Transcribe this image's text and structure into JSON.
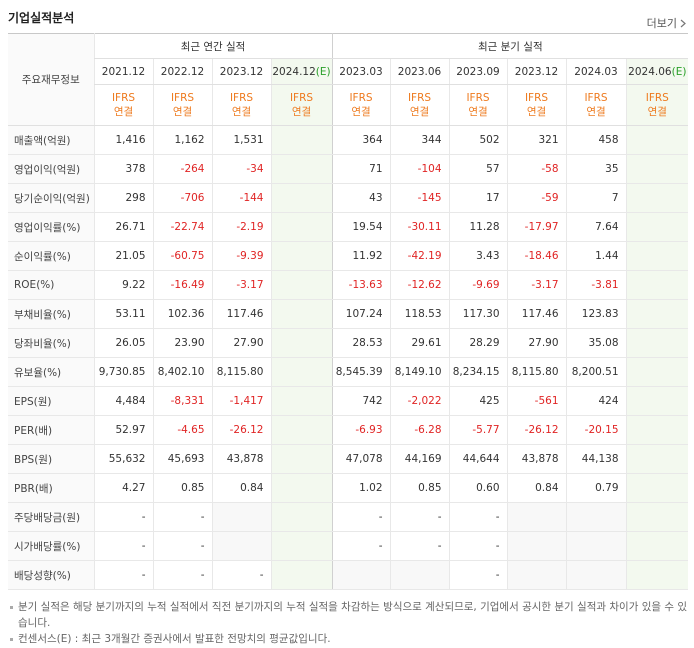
{
  "header": {
    "title": "기업실적분석",
    "more": "더보기"
  },
  "table": {
    "corner": "주요재무정보",
    "groups": [
      "최근 연간 실적",
      "최근 분기 실적"
    ],
    "periods": [
      {
        "label": "2021.12"
      },
      {
        "label": "2022.12"
      },
      {
        "label": "2023.12"
      },
      {
        "label": "2024.12",
        "mark": "(E)"
      },
      {
        "label": "2023.03"
      },
      {
        "label": "2023.06"
      },
      {
        "label": "2023.09"
      },
      {
        "label": "2023.12"
      },
      {
        "label": "2024.03"
      },
      {
        "label": "2024.06",
        "mark": "(E)"
      }
    ],
    "accounting": [
      {
        "standard": "IFRS",
        "basis": "연결"
      },
      {
        "standard": "IFRS",
        "basis": "연결"
      },
      {
        "standard": "IFRS",
        "basis": "연결"
      },
      {
        "standard": "IFRS",
        "basis": "연결"
      },
      {
        "standard": "IFRS",
        "basis": "연결"
      },
      {
        "standard": "IFRS",
        "basis": "연결"
      },
      {
        "standard": "IFRS",
        "basis": "연결"
      },
      {
        "standard": "IFRS",
        "basis": "연결"
      },
      {
        "standard": "IFRS",
        "basis": "연결"
      },
      {
        "standard": "IFRS",
        "basis": "연결"
      }
    ],
    "rows": [
      {
        "label": "매출액(억원)",
        "cells": [
          "1,416",
          "1,162",
          "1,531",
          null,
          "364",
          "344",
          "502",
          "321",
          "458",
          null
        ]
      },
      {
        "label": "영업이익(억원)",
        "cells": [
          "378",
          "-264",
          "-34",
          null,
          "71",
          "-104",
          "57",
          "-58",
          "35",
          null
        ]
      },
      {
        "label": "당기순이익(억원)",
        "cells": [
          "298",
          "-706",
          "-144",
          null,
          "43",
          "-145",
          "17",
          "-59",
          "7",
          null
        ]
      },
      {
        "label": "영업이익률(%)",
        "cells": [
          "26.71",
          "-22.74",
          "-2.19",
          null,
          "19.54",
          "-30.11",
          "11.28",
          "-17.97",
          "7.64",
          null
        ]
      },
      {
        "label": "순이익률(%)",
        "cells": [
          "21.05",
          "-60.75",
          "-9.39",
          null,
          "11.92",
          "-42.19",
          "3.43",
          "-18.46",
          "1.44",
          null
        ]
      },
      {
        "label": "ROE(%)",
        "cells": [
          "9.22",
          "-16.49",
          "-3.17",
          null,
          "-13.63",
          "-12.62",
          "-9.69",
          "-3.17",
          "-3.81",
          null
        ]
      },
      {
        "label": "부채비율(%)",
        "cells": [
          "53.11",
          "102.36",
          "117.46",
          null,
          "107.24",
          "118.53",
          "117.30",
          "117.46",
          "123.83",
          null
        ]
      },
      {
        "label": "당좌비율(%)",
        "cells": [
          "26.05",
          "23.90",
          "27.90",
          null,
          "28.53",
          "29.61",
          "28.29",
          "27.90",
          "35.08",
          null
        ]
      },
      {
        "label": "유보율(%)",
        "cells": [
          "9,730.85",
          "8,402.10",
          "8,115.80",
          null,
          "8,545.39",
          "8,149.10",
          "8,234.15",
          "8,115.80",
          "8,200.51",
          null
        ]
      },
      {
        "label": "EPS(원)",
        "cells": [
          "4,484",
          "-8,331",
          "-1,417",
          null,
          "742",
          "-2,022",
          "425",
          "-561",
          "424",
          null
        ]
      },
      {
        "label": "PER(배)",
        "cells": [
          "52.97",
          "-4.65",
          "-26.12",
          null,
          "-6.93",
          "-6.28",
          "-5.77",
          "-26.12",
          "-20.15",
          null
        ]
      },
      {
        "label": "BPS(원)",
        "cells": [
          "55,632",
          "45,693",
          "43,878",
          null,
          "47,078",
          "44,169",
          "44,644",
          "43,878",
          "44,138",
          null
        ]
      },
      {
        "label": "PBR(배)",
        "cells": [
          "4.27",
          "0.85",
          "0.84",
          null,
          "1.02",
          "0.85",
          "0.60",
          "0.84",
          "0.79",
          null
        ]
      },
      {
        "label": "주당배당금(원)",
        "cells": [
          "-",
          "-",
          null,
          null,
          "-",
          "-",
          "-",
          null,
          null,
          null
        ]
      },
      {
        "label": "시가배당률(%)",
        "cells": [
          "-",
          "-",
          null,
          null,
          "-",
          "-",
          "-",
          null,
          null,
          null
        ]
      },
      {
        "label": "배당성향(%)",
        "cells": [
          "-",
          "-",
          "-",
          null,
          null,
          null,
          "-",
          null,
          null,
          null
        ]
      }
    ]
  },
  "notes": [
    "분기 실적은 해당 분기까지의 누적 실적에서 직전 분기까지의 누적 실적을 차감하는 방식으로 계산되므로, 기업에서 공시한 분기 실적과 차이가 있을 수 있습니다.",
    "컨센서스(E) : 최근 3개월간 증권사에서 발표한 전망치의 평균값입니다."
  ]
}
